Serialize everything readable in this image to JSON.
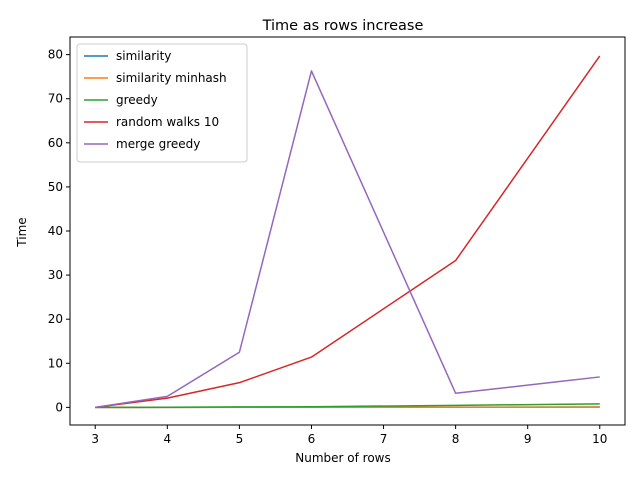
{
  "chart_data": {
    "type": "line",
    "title": "Time as rows increase",
    "xlabel": "Number of rows",
    "ylabel": "Time",
    "x": [
      3,
      4,
      5,
      6,
      8,
      10
    ],
    "xlim": [
      2.65,
      10.35
    ],
    "ylim": [
      -4.0,
      84.0
    ],
    "xticks": [
      3,
      4,
      5,
      6,
      7,
      8,
      9,
      10
    ],
    "yticks": [
      0,
      10,
      20,
      30,
      40,
      50,
      60,
      70,
      80
    ],
    "grid": false,
    "legend_position": "top-left",
    "series": [
      {
        "name": "similarity",
        "color": "#1f77b4",
        "values": [
          0.0,
          0.01,
          0.02,
          0.03,
          0.05,
          0.08
        ]
      },
      {
        "name": "similarity minhash",
        "color": "#ff7f0e",
        "values": [
          0.0,
          0.01,
          0.02,
          0.02,
          0.03,
          0.05
        ]
      },
      {
        "name": "greedy",
        "color": "#2ca02c",
        "values": [
          0.0,
          0.02,
          0.1,
          0.15,
          0.45,
          0.8
        ]
      },
      {
        "name": "random walks 10",
        "color": "#d62728",
        "values": [
          0.0,
          2.1,
          5.6,
          11.4,
          33.3,
          79.7
        ]
      },
      {
        "name": "merge greedy",
        "color": "#9467bd",
        "values": [
          0.0,
          2.5,
          12.5,
          76.3,
          3.2,
          6.9
        ]
      }
    ]
  }
}
